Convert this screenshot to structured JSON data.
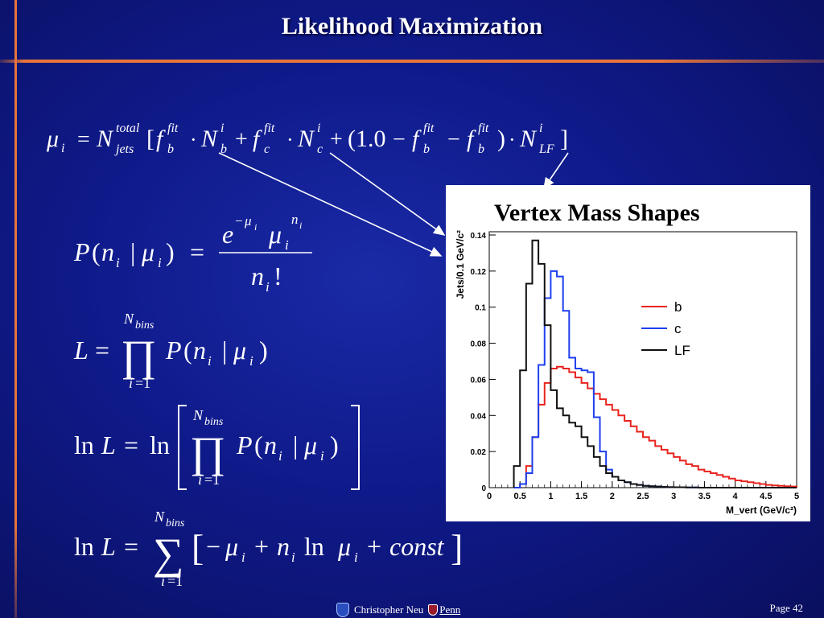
{
  "slide": {
    "title": "Likelihood Maximization",
    "footer_author": "Christopher Neu",
    "footer_logo_text": "Penn",
    "page_label": "Page 42",
    "colors": {
      "background": "#0f1a8a",
      "accent_line": "#e8753a",
      "text": "#ffffff"
    }
  },
  "chart_data": {
    "type": "line",
    "title": "Vertex Mass Shapes",
    "xlabel": "M_vert (GeV/c²)",
    "ylabel": "Jets/0.1 GeV/c²",
    "xlim": [
      0,
      5
    ],
    "ylim": [
      0,
      0.14
    ],
    "xticks": [
      "0",
      "0.5",
      "1",
      "1.5",
      "2",
      "2.5",
      "3",
      "3.5",
      "4",
      "4.5",
      "5"
    ],
    "yticks": [
      "0",
      "0.02",
      "0.04",
      "0.06",
      "0.08",
      "0.1",
      "0.12",
      "0.14"
    ],
    "legend_position": "right",
    "x": [
      0.4,
      0.5,
      0.6,
      0.7,
      0.8,
      0.9,
      1.0,
      1.1,
      1.2,
      1.3,
      1.4,
      1.5,
      1.6,
      1.7,
      1.8,
      1.9,
      2.0,
      2.1,
      2.2,
      2.3,
      2.4,
      2.5,
      2.6,
      2.7,
      2.8,
      2.9,
      3.0,
      3.1,
      3.2,
      3.3,
      3.4,
      3.5,
      3.6,
      3.7,
      3.8,
      3.9,
      4.0,
      4.1,
      4.2,
      4.3,
      4.4,
      4.5,
      4.6,
      4.7,
      4.8,
      4.9
    ],
    "series": [
      {
        "name": "b",
        "color": "#e8231d",
        "values": [
          0,
          0.002,
          0.012,
          0.028,
          0.046,
          0.058,
          0.066,
          0.067,
          0.066,
          0.064,
          0.061,
          0.058,
          0.055,
          0.052,
          0.049,
          0.046,
          0.043,
          0.04,
          0.037,
          0.034,
          0.031,
          0.028,
          0.026,
          0.023,
          0.021,
          0.019,
          0.017,
          0.015,
          0.013,
          0.012,
          0.01,
          0.009,
          0.008,
          0.007,
          0.006,
          0.005,
          0.004,
          0.0035,
          0.003,
          0.0025,
          0.002,
          0.0015,
          0.0012,
          0.001,
          0.0008,
          0.0006
        ]
      },
      {
        "name": "c",
        "color": "#1d3ff0",
        "values": [
          0,
          0.002,
          0.008,
          0.028,
          0.068,
          0.105,
          0.12,
          0.117,
          0.098,
          0.072,
          0.066,
          0.065,
          0.064,
          0.039,
          0.02,
          0.01,
          0.006,
          0.004,
          0.003,
          0.002,
          0.0015,
          0.001,
          0.0008,
          0.0006,
          0.0004,
          0.0003,
          0.0002,
          0.0002,
          0.0001,
          0.0001,
          0,
          0,
          0,
          0,
          0,
          0,
          0,
          0,
          0,
          0,
          0,
          0,
          0,
          0,
          0,
          0
        ]
      },
      {
        "name": "LF",
        "color": "#111111",
        "values": [
          0.012,
          0.065,
          0.113,
          0.137,
          0.124,
          0.09,
          0.054,
          0.044,
          0.04,
          0.036,
          0.034,
          0.028,
          0.023,
          0.017,
          0.012,
          0.008,
          0.006,
          0.004,
          0.003,
          0.002,
          0.0015,
          0.001,
          0.0008,
          0.0006,
          0.0004,
          0.0003,
          0.0002,
          0.0002,
          0.0001,
          0.0001,
          0,
          0,
          0,
          0,
          0,
          0,
          0,
          0,
          0,
          0,
          0,
          0,
          0,
          0,
          0,
          0
        ]
      }
    ]
  }
}
